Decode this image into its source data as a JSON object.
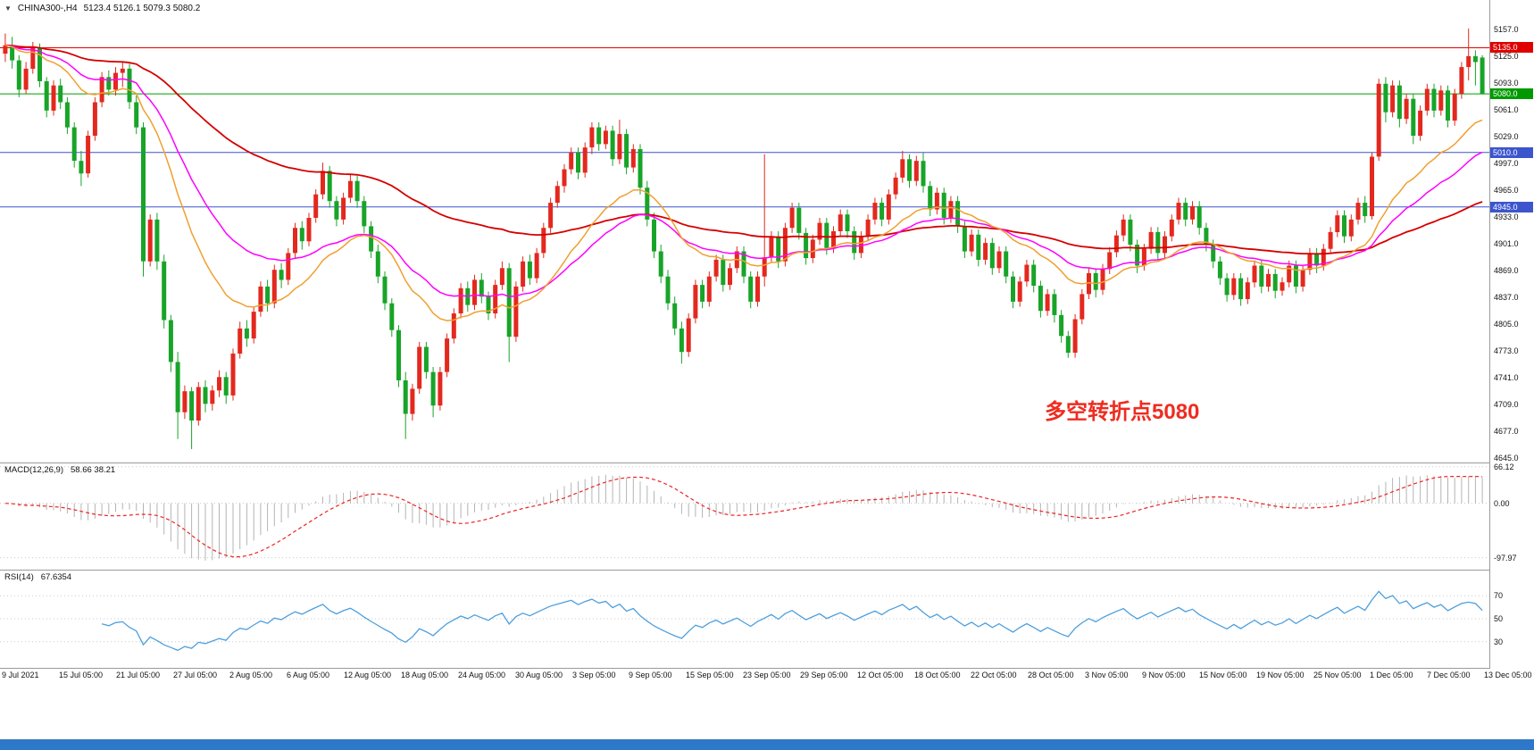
{
  "header": {
    "symbol": "CHINA300-,H4",
    "ohlc_text": "5123.4 5126.1 5079.3 5080.2",
    "dropdown_icon": "triangle-down"
  },
  "annotation": {
    "text": "多空转折点5080",
    "color": "#ef2c20"
  },
  "macd_panel": {
    "label": "MACD(12,26,9)",
    "values": "58.66 38.21",
    "ticks": [
      "66.12",
      "0.00",
      "-97.97"
    ]
  },
  "rsi_panel": {
    "label": "RSI(14)",
    "value": "67.6354",
    "levels": [
      "70",
      "50",
      "30"
    ]
  },
  "ui_colors": {
    "scrollbar": "#2d78c8",
    "separator": "#9b9b9b"
  },
  "chart_data": {
    "type": "candlestick",
    "title": "CHINA300- H4",
    "symbol": "CHINA300-",
    "timeframe": "H4",
    "ohlc_current": {
      "open": 5123.4,
      "high": 5126.1,
      "low": 5079.3,
      "close": 5080.2
    },
    "y_range": [
      4640,
      5192
    ],
    "y_ticks": [
      "5157.0",
      "5125.0",
      "5093.0",
      "5061.0",
      "5029.0",
      "4997.0",
      "4965.0",
      "4933.0",
      "4901.0",
      "4869.0",
      "4837.0",
      "4805.0",
      "4773.0",
      "4741.0",
      "4709.0",
      "4677.0",
      "4645.0"
    ],
    "x_labels": [
      "9 Jul 2021",
      "15 Jul 05:00",
      "21 Jul 05:00",
      "27 Jul 05:00",
      "2 Aug 05:00",
      "6 Aug 05:00",
      "12 Aug 05:00",
      "18 Aug 05:00",
      "24 Aug 05:00",
      "30 Aug 05:00",
      "3 Sep 05:00",
      "9 Sep 05:00",
      "15 Sep 05:00",
      "23 Sep 05:00",
      "29 Sep 05:00",
      "12 Oct 05:00",
      "18 Oct 05:00",
      "22 Oct 05:00",
      "28 Oct 05:00",
      "3 Nov 05:00",
      "9 Nov 05:00",
      "15 Nov 05:00",
      "19 Nov 05:00",
      "25 Nov 05:00",
      "1 Dec 05:00",
      "7 Dec 05:00",
      "13 Dec 05:00"
    ],
    "levels": [
      {
        "price": 5135.0,
        "label": "5135.0",
        "color": "#e00000"
      },
      {
        "price": 5080.0,
        "label": "5080.0",
        "color": "#009a00"
      },
      {
        "price": 5010.0,
        "label": "5010.0",
        "color": "#3c55cd"
      },
      {
        "price": 4945.0,
        "label": "4945.0",
        "color": "#3c55cd"
      }
    ],
    "colors": {
      "up": "#e3281e",
      "down": "#18a428",
      "ma_slow": "#d50000",
      "ma_mid": "#ff00ff",
      "ma_fast": "#f0a030",
      "macd_hist": "#b4b4b4",
      "macd_signal": "#ee2222",
      "rsi": "#4d9fdd"
    },
    "moving_averages": [
      {
        "type": "ema",
        "period": 90,
        "color": "#d50000",
        "width": 1.8
      },
      {
        "type": "ema",
        "period": 34,
        "color": "#ff00ff",
        "width": 1.5
      },
      {
        "type": "ema",
        "period": 20,
        "color": "#f0a030",
        "width": 1.5
      }
    ],
    "macd": {
      "fast": 12,
      "slow": 26,
      "signal": 9,
      "current_main": 58.66,
      "current_signal": 38.21,
      "y_range": [
        72,
        -118
      ]
    },
    "rsi": {
      "period": 14,
      "current": 67.6354,
      "levels": [
        70,
        50,
        30
      ],
      "y_range": [
        92,
        8
      ]
    },
    "candles": [
      [
        5128,
        5152,
        5118,
        5138
      ],
      [
        5138,
        5148,
        5110,
        5120
      ],
      [
        5120,
        5126,
        5076,
        5085
      ],
      [
        5085,
        5118,
        5080,
        5110
      ],
      [
        5110,
        5142,
        5104,
        5135
      ],
      [
        5135,
        5140,
        5088,
        5095
      ],
      [
        5095,
        5100,
        5052,
        5060
      ],
      [
        5060,
        5096,
        5054,
        5090
      ],
      [
        5090,
        5098,
        5062,
        5070
      ],
      [
        5070,
        5076,
        5032,
        5040
      ],
      [
        5040,
        5046,
        4992,
        5000
      ],
      [
        5000,
        5012,
        4970,
        4985
      ],
      [
        4985,
        5036,
        4980,
        5030
      ],
      [
        5030,
        5076,
        5024,
        5070
      ],
      [
        5070,
        5106,
        5064,
        5100
      ],
      [
        5100,
        5108,
        5078,
        5085
      ],
      [
        5085,
        5112,
        5078,
        5105
      ],
      [
        5105,
        5118,
        5088,
        5110
      ],
      [
        5110,
        5116,
        5062,
        5070
      ],
      [
        5070,
        5078,
        5032,
        5040
      ],
      [
        5040,
        5046,
        4862,
        4880
      ],
      [
        4880,
        4936,
        4874,
        4930
      ],
      [
        4930,
        4938,
        4870,
        4880
      ],
      [
        4880,
        4888,
        4800,
        4810
      ],
      [
        4810,
        4816,
        4748,
        4760
      ],
      [
        4760,
        4772,
        4668,
        4700
      ],
      [
        4700,
        4732,
        4692,
        4725
      ],
      [
        4725,
        4730,
        4656,
        4690
      ],
      [
        4690,
        4736,
        4684,
        4730
      ],
      [
        4730,
        4738,
        4700,
        4710
      ],
      [
        4710,
        4732,
        4702,
        4726
      ],
      [
        4726,
        4750,
        4718,
        4742
      ],
      [
        4742,
        4748,
        4710,
        4720
      ],
      [
        4720,
        4776,
        4714,
        4770
      ],
      [
        4770,
        4808,
        4764,
        4800
      ],
      [
        4800,
        4810,
        4778,
        4788
      ],
      [
        4788,
        4826,
        4782,
        4820
      ],
      [
        4820,
        4856,
        4814,
        4850
      ],
      [
        4850,
        4858,
        4820,
        4830
      ],
      [
        4830,
        4876,
        4824,
        4870
      ],
      [
        4870,
        4878,
        4848,
        4858
      ],
      [
        4858,
        4896,
        4852,
        4890
      ],
      [
        4890,
        4926,
        4884,
        4920
      ],
      [
        4920,
        4928,
        4894,
        4904
      ],
      [
        4904,
        4938,
        4898,
        4932
      ],
      [
        4932,
        4966,
        4926,
        4960
      ],
      [
        4960,
        4998,
        4954,
        4988
      ],
      [
        4988,
        4994,
        4944,
        4952
      ],
      [
        4952,
        4958,
        4922,
        4930
      ],
      [
        4930,
        4962,
        4924,
        4956
      ],
      [
        4956,
        4984,
        4950,
        4976
      ],
      [
        4976,
        4982,
        4944,
        4952
      ],
      [
        4952,
        4958,
        4914,
        4922
      ],
      [
        4922,
        4928,
        4884,
        4892
      ],
      [
        4892,
        4900,
        4854,
        4862
      ],
      [
        4862,
        4868,
        4822,
        4830
      ],
      [
        4830,
        4836,
        4790,
        4798
      ],
      [
        4798,
        4804,
        4730,
        4738
      ],
      [
        4738,
        4748,
        4668,
        4698
      ],
      [
        4698,
        4734,
        4690,
        4728
      ],
      [
        4728,
        4784,
        4722,
        4778
      ],
      [
        4778,
        4784,
        4740,
        4748
      ],
      [
        4748,
        4754,
        4694,
        4708
      ],
      [
        4708,
        4754,
        4702,
        4748
      ],
      [
        4748,
        4794,
        4742,
        4788
      ],
      [
        4788,
        4824,
        4782,
        4818
      ],
      [
        4818,
        4854,
        4812,
        4848
      ],
      [
        4848,
        4856,
        4820,
        4828
      ],
      [
        4828,
        4864,
        4822,
        4858
      ],
      [
        4858,
        4866,
        4830,
        4838
      ],
      [
        4838,
        4844,
        4810,
        4818
      ],
      [
        4818,
        4858,
        4812,
        4852
      ],
      [
        4852,
        4880,
        4846,
        4872
      ],
      [
        4872,
        4878,
        4760,
        4790
      ],
      [
        4790,
        4856,
        4784,
        4850
      ],
      [
        4850,
        4886,
        4844,
        4880
      ],
      [
        4880,
        4888,
        4852,
        4860
      ],
      [
        4860,
        4896,
        4854,
        4890
      ],
      [
        4890,
        4926,
        4884,
        4920
      ],
      [
        4920,
        4956,
        4914,
        4950
      ],
      [
        4950,
        4976,
        4944,
        4970
      ],
      [
        4970,
        4996,
        4962,
        4990
      ],
      [
        4990,
        5016,
        4984,
        5010
      ],
      [
        5010,
        5016,
        4978,
        4986
      ],
      [
        4986,
        5022,
        4980,
        5016
      ],
      [
        5016,
        5046,
        5008,
        5040
      ],
      [
        5040,
        5046,
        5012,
        5020
      ],
      [
        5020,
        5042,
        5014,
        5036
      ],
      [
        5036,
        5042,
        4994,
        5002
      ],
      [
        5002,
        5049,
        4996,
        5032
      ],
      [
        5032,
        5038,
        4984,
        4992
      ],
      [
        4992,
        5020,
        4986,
        5014
      ],
      [
        5014,
        5020,
        4960,
        4968
      ],
      [
        4968,
        4976,
        4922,
        4930
      ],
      [
        4930,
        4938,
        4884,
        4892
      ],
      [
        4892,
        4900,
        4854,
        4862
      ],
      [
        4862,
        4870,
        4822,
        4830
      ],
      [
        4830,
        4838,
        4792,
        4800
      ],
      [
        4800,
        4808,
        4758,
        4772
      ],
      [
        4772,
        4818,
        4766,
        4812
      ],
      [
        4812,
        4858,
        4806,
        4852
      ],
      [
        4852,
        4858,
        4824,
        4832
      ],
      [
        4832,
        4868,
        4826,
        4862
      ],
      [
        4862,
        4888,
        4856,
        4882
      ],
      [
        4882,
        4888,
        4844,
        4852
      ],
      [
        4852,
        4878,
        4846,
        4872
      ],
      [
        4872,
        4898,
        4866,
        4892
      ],
      [
        4892,
        4898,
        4854,
        4862
      ],
      [
        4862,
        4868,
        4824,
        4832
      ],
      [
        4832,
        4868,
        4826,
        4862
      ],
      [
        4862,
        5008,
        4850,
        4885
      ],
      [
        4885,
        4916,
        4879,
        4910
      ],
      [
        4910,
        4916,
        4872,
        4880
      ],
      [
        4880,
        4926,
        4874,
        4920
      ],
      [
        4920,
        4950,
        4914,
        4944
      ],
      [
        4944,
        4950,
        4906,
        4914
      ],
      [
        4914,
        4920,
        4876,
        4884
      ],
      [
        4884,
        4912,
        4878,
        4906
      ],
      [
        4906,
        4932,
        4900,
        4926
      ],
      [
        4926,
        4932,
        4888,
        4896
      ],
      [
        4896,
        4922,
        4890,
        4916
      ],
      [
        4916,
        4942,
        4910,
        4936
      ],
      [
        4936,
        4942,
        4908,
        4916
      ],
      [
        4916,
        4922,
        4882,
        4890
      ],
      [
        4890,
        4916,
        4884,
        4910
      ],
      [
        4910,
        4936,
        4904,
        4930
      ],
      [
        4930,
        4956,
        4924,
        4950
      ],
      [
        4950,
        4956,
        4922,
        4930
      ],
      [
        4930,
        4966,
        4924,
        4960
      ],
      [
        4960,
        4986,
        4954,
        4980
      ],
      [
        4980,
        5012,
        4974,
        5002
      ],
      [
        5002,
        5008,
        4968,
        4976
      ],
      [
        4976,
        5006,
        4970,
        5000
      ],
      [
        5000,
        5010,
        4962,
        4970
      ],
      [
        4970,
        4976,
        4934,
        4942
      ],
      [
        4942,
        4968,
        4936,
        4962
      ],
      [
        4962,
        4968,
        4924,
        4932
      ],
      [
        4932,
        4958,
        4926,
        4952
      ],
      [
        4952,
        4958,
        4914,
        4922
      ],
      [
        4922,
        4928,
        4884,
        4892
      ],
      [
        4892,
        4918,
        4886,
        4912
      ],
      [
        4912,
        4918,
        4874,
        4882
      ],
      [
        4882,
        4908,
        4876,
        4902
      ],
      [
        4902,
        4908,
        4864,
        4872
      ],
      [
        4872,
        4898,
        4866,
        4892
      ],
      [
        4892,
        4898,
        4854,
        4862
      ],
      [
        4862,
        4868,
        4824,
        4832
      ],
      [
        4832,
        4862,
        4826,
        4856
      ],
      [
        4856,
        4882,
        4850,
        4876
      ],
      [
        4876,
        4882,
        4843,
        4851
      ],
      [
        4851,
        4857,
        4813,
        4821
      ],
      [
        4821,
        4847,
        4815,
        4841
      ],
      [
        4841,
        4847,
        4807,
        4816
      ],
      [
        4816,
        4822,
        4783,
        4791
      ],
      [
        4791,
        4797,
        4765,
        4771
      ],
      [
        4771,
        4817,
        4765,
        4811
      ],
      [
        4811,
        4847,
        4805,
        4841
      ],
      [
        4841,
        4872,
        4835,
        4866
      ],
      [
        4866,
        4872,
        4837,
        4846
      ],
      [
        4846,
        4877,
        4840,
        4871
      ],
      [
        4871,
        4897,
        4865,
        4891
      ],
      [
        4891,
        4917,
        4885,
        4911
      ],
      [
        4911,
        4936,
        4904,
        4930
      ],
      [
        4930,
        4936,
        4892,
        4900
      ],
      [
        4900,
        4906,
        4866,
        4875
      ],
      [
        4875,
        4901,
        4869,
        4895
      ],
      [
        4895,
        4921,
        4889,
        4915
      ],
      [
        4915,
        4921,
        4882,
        4890
      ],
      [
        4890,
        4916,
        4884,
        4910
      ],
      [
        4910,
        4936,
        4904,
        4930
      ],
      [
        4930,
        4956,
        4924,
        4950
      ],
      [
        4950,
        4956,
        4922,
        4930
      ],
      [
        4930,
        4952,
        4924,
        4946
      ],
      [
        4946,
        4952,
        4912,
        4920
      ],
      [
        4920,
        4926,
        4892,
        4900
      ],
      [
        4900,
        4906,
        4872,
        4880
      ],
      [
        4880,
        4886,
        4852,
        4860
      ],
      [
        4860,
        4866,
        4832,
        4840
      ],
      [
        4840,
        4866,
        4834,
        4860
      ],
      [
        4860,
        4866,
        4827,
        4835
      ],
      [
        4835,
        4861,
        4829,
        4855
      ],
      [
        4855,
        4881,
        4849,
        4875
      ],
      [
        4875,
        4881,
        4842,
        4850
      ],
      [
        4850,
        4871,
        4844,
        4865
      ],
      [
        4865,
        4871,
        4836,
        4845
      ],
      [
        4845,
        4861,
        4839,
        4855
      ],
      [
        4855,
        4881,
        4849,
        4875
      ],
      [
        4875,
        4881,
        4842,
        4850
      ],
      [
        4850,
        4876,
        4844,
        4870
      ],
      [
        4870,
        4896,
        4864,
        4890
      ],
      [
        4890,
        4896,
        4866,
        4875
      ],
      [
        4875,
        4901,
        4869,
        4895
      ],
      [
        4895,
        4921,
        4889,
        4915
      ],
      [
        4915,
        4941,
        4909,
        4935
      ],
      [
        4935,
        4941,
        4902,
        4910
      ],
      [
        4910,
        4936,
        4904,
        4930
      ],
      [
        4930,
        4956,
        4924,
        4950
      ],
      [
        4950,
        4958,
        4926,
        4934
      ],
      [
        4934,
        5010,
        4930,
        5005
      ],
      [
        5005,
        5098,
        5000,
        5092
      ],
      [
        5092,
        5100,
        5046,
        5058
      ],
      [
        5058,
        5096,
        5052,
        5090
      ],
      [
        5090,
        5096,
        5040,
        5050
      ],
      [
        5050,
        5080,
        5044,
        5074
      ],
      [
        5074,
        5080,
        5020,
        5030
      ],
      [
        5030,
        5066,
        5024,
        5060
      ],
      [
        5060,
        5092,
        5054,
        5086
      ],
      [
        5086,
        5092,
        5052,
        5060
      ],
      [
        5060,
        5090,
        5054,
        5084
      ],
      [
        5084,
        5090,
        5040,
        5048
      ],
      [
        5048,
        5086,
        5042,
        5080
      ],
      [
        5080,
        5118,
        5074,
        5112
      ],
      [
        5112,
        5158,
        5096,
        5125
      ],
      [
        5125,
        5132,
        5090,
        5118
      ],
      [
        5123.4,
        5126.1,
        5079.3,
        5080.2
      ]
    ]
  }
}
